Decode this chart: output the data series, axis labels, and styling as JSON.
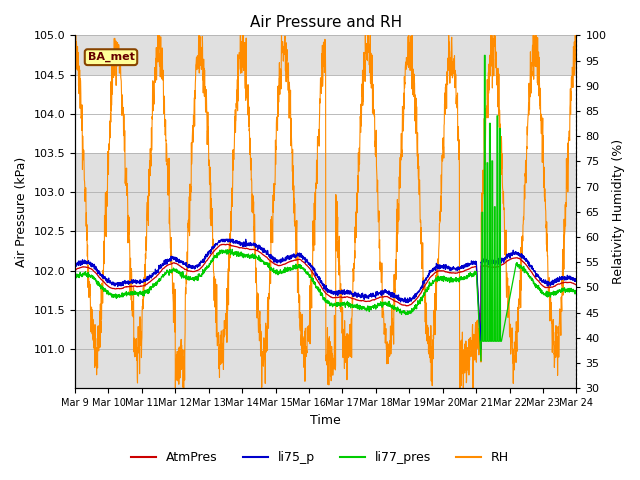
{
  "title": "Air Pressure and RH",
  "xlabel": "Time",
  "ylabel_left": "Air Pressure (kPa)",
  "ylabel_right": "Relativity Humidity (%)",
  "annotation": "BA_met",
  "ylim_left": [
    100.5,
    105.0
  ],
  "ylim_right": [
    30,
    100
  ],
  "yticks_left": [
    101.0,
    101.5,
    102.0,
    102.5,
    103.0,
    103.5,
    104.0,
    104.5,
    105.0
  ],
  "yticks_right": [
    30,
    35,
    40,
    45,
    50,
    55,
    60,
    65,
    70,
    75,
    80,
    85,
    90,
    95,
    100
  ],
  "xtick_labels": [
    "Mar 9",
    "Mar 10",
    "Mar 11",
    "Mar 12",
    "Mar 13",
    "Mar 14",
    "Mar 15",
    "Mar 16",
    "Mar 17",
    "Mar 18",
    "Mar 19",
    "Mar 20",
    "Mar 21",
    "Mar 22",
    "Mar 23",
    "Mar 24"
  ],
  "colors": {
    "AtmPres": "#cc0000",
    "li75_p": "#0000cc",
    "li77_pres": "#00cc00",
    "RH": "#ff8c00"
  },
  "legend_labels": [
    "AtmPres",
    "li75_p",
    "li77_pres",
    "RH"
  ],
  "background_color": "#ffffff",
  "grid_color": "#b0b0b0",
  "shading_color": "#e0e0e0",
  "num_days": 15,
  "seed": 42
}
